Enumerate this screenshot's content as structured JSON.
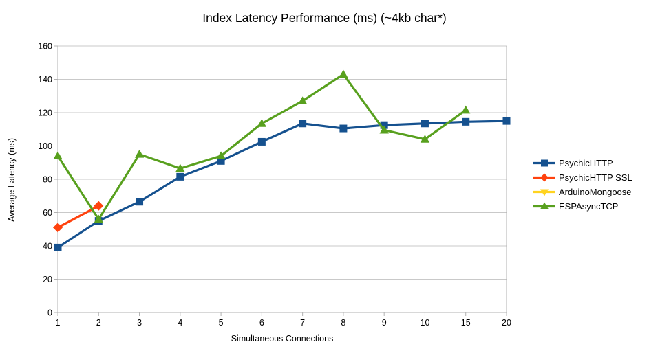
{
  "chart_data": {
    "type": "line",
    "title": "Index Latency Performance (ms) (~4kb char*)",
    "xlabel": "Simultaneous Connections",
    "ylabel": "Average Latency (ms)",
    "x_categories": [
      "1",
      "2",
      "3",
      "4",
      "5",
      "6",
      "7",
      "8",
      "9",
      "10",
      "15",
      "20"
    ],
    "ylim": [
      0,
      160
    ],
    "ytick_step": 20,
    "grid": "horizontal-only",
    "legend_position": "right",
    "grid_color": "#c9c9c9",
    "axis_color": "#b1b1b1",
    "series": [
      {
        "name": "PsychicHTTP",
        "color": "#15518F",
        "marker": "square",
        "x": [
          "1",
          "2",
          "3",
          "4",
          "5",
          "6",
          "7",
          "8",
          "9",
          "10",
          "15",
          "20"
        ],
        "values": [
          39,
          55,
          66.5,
          81.5,
          91,
          102.5,
          113.5,
          110.5,
          112.5,
          113.5,
          114.5,
          115
        ]
      },
      {
        "name": "PsychicHTTP SSL",
        "color": "#FF420E",
        "marker": "diamond",
        "x": [
          "1",
          "2"
        ],
        "values": [
          51,
          64
        ]
      },
      {
        "name": "ArduinoMongoose",
        "color": "#FFD320",
        "marker": "triangle-down",
        "x": [],
        "values": []
      },
      {
        "name": "ESPAsyncTCP",
        "color": "#58A01E",
        "marker": "triangle-up",
        "x": [
          "1",
          "2",
          "3",
          "4",
          "5",
          "6",
          "7",
          "8",
          "9",
          "10",
          "15"
        ],
        "values": [
          94,
          56,
          95,
          86.5,
          94,
          113.5,
          127,
          143,
          109.5,
          104,
          121.5
        ]
      }
    ]
  }
}
